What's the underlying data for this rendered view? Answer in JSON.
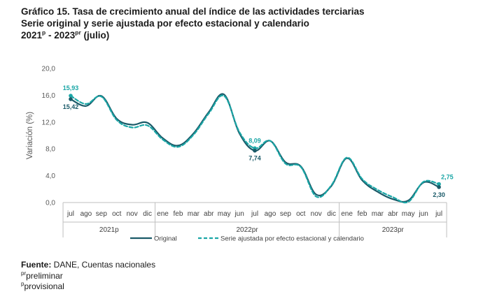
{
  "title": {
    "line1": "Gráfico 15. Tasa de crecimiento anual del índice de las actividades terciarias",
    "line2": "Serie original y serie ajustada por efecto estacional y calendario",
    "line3_start": "2021",
    "line3_sup1": "p",
    "line3_mid": " - 2023",
    "line3_sup2": "pr",
    "line3_end": " (julio)"
  },
  "chart_data": {
    "type": "line",
    "ylabel": "Variación (%)",
    "ylim": [
      0,
      20
    ],
    "yticks": [
      "0,0",
      "4,0",
      "8,0",
      "12,0",
      "16,0",
      "20,0"
    ],
    "yticks_values": [
      0,
      4,
      8,
      12,
      16,
      20
    ],
    "categories": [
      "jul",
      "ago",
      "sep",
      "oct",
      "nov",
      "dic",
      "ene",
      "feb",
      "mar",
      "abr",
      "may",
      "jun",
      "jul",
      "ago",
      "sep",
      "oct",
      "nov",
      "dic",
      "ene",
      "feb",
      "mar",
      "abr",
      "may",
      "jun",
      "jul"
    ],
    "year_groups": [
      {
        "label": "2021p",
        "start": 0,
        "end": 5
      },
      {
        "label": "2022pr",
        "start": 6,
        "end": 17
      },
      {
        "label": "2023pr",
        "start": 18,
        "end": 24
      }
    ],
    "series": [
      {
        "name": "Original",
        "color": "#1a5a68",
        "style": "solid",
        "values": [
          15.42,
          14.4,
          15.9,
          12.5,
          11.6,
          11.9,
          9.6,
          8.5,
          10.3,
          13.5,
          16.1,
          10.3,
          7.74,
          9.2,
          6.0,
          5.4,
          1.2,
          2.5,
          6.6,
          3.3,
          1.6,
          0.5,
          0.3,
          3.0,
          2.3
        ]
      },
      {
        "name": "Serie ajustada por efecto estacional y calendario",
        "color": "#1aa6a6",
        "style": "dashed",
        "values": [
          15.93,
          14.7,
          15.8,
          12.3,
          11.2,
          11.5,
          9.4,
          8.3,
          10.1,
          13.3,
          15.9,
          10.5,
          8.09,
          9.2,
          5.8,
          5.3,
          0.9,
          2.6,
          6.7,
          3.5,
          1.9,
          0.8,
          0.1,
          3.1,
          2.75
        ]
      }
    ],
    "annotations": [
      {
        "text": "15,93",
        "series": 1,
        "index": 0,
        "position": "above"
      },
      {
        "text": "15,42",
        "series": 0,
        "index": 0,
        "position": "below"
      },
      {
        "text": "8,09",
        "series": 1,
        "index": 12,
        "position": "above"
      },
      {
        "text": "7,74",
        "series": 0,
        "index": 12,
        "position": "below"
      },
      {
        "text": "2,75",
        "series": 1,
        "index": 24,
        "position": "above-right"
      },
      {
        "text": "2,30",
        "series": 0,
        "index": 24,
        "position": "below"
      }
    ]
  },
  "footer": {
    "source_label": "Fuente:",
    "source_text": " DANE, Cuentas nacionales",
    "note1_sup": "pr",
    "note1_text": "preliminar",
    "note2_sup": "p",
    "note2_text": "provisional"
  }
}
